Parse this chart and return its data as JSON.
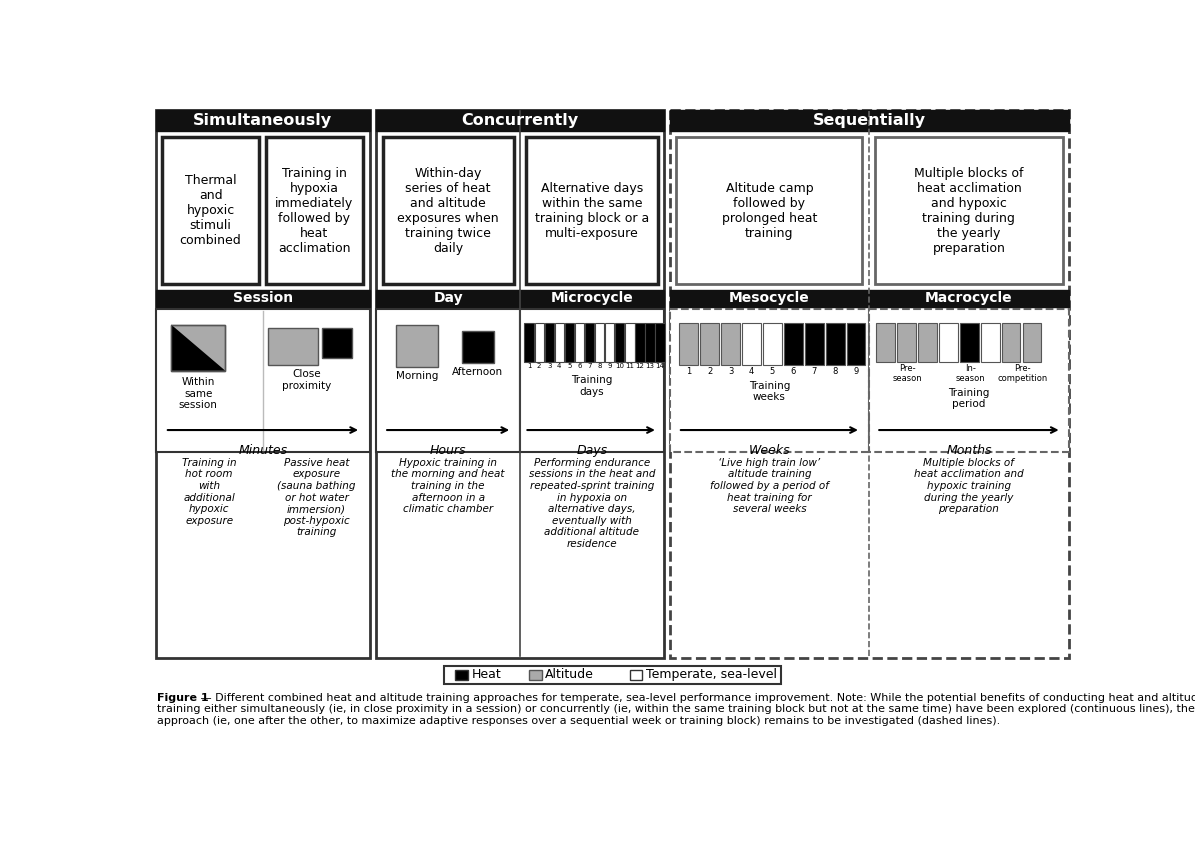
{
  "title_simultaneously": "Simultaneously",
  "title_concurrently": "Concurrently",
  "title_sequentially": "Sequentially",
  "header_bg": "#111111",
  "header_text_color": "#ffffff",
  "heat_color": "#000000",
  "altitude_color": "#aaaaaa",
  "temperate_color": "#ffffff",
  "figure_caption_bold": "Figure 1",
  "figure_caption_rest": " — Different combined heat and altitude training approaches for temperate, sea-level performance improvement. Note: While the potential benefits of conducting heat and altitude training either simultaneously (ie, in close proximity in a session) or concurrently (ie, within the same training block but not at the same time) have been explored (continuous lines), the sequential approach (ie, one after the other, to maximize adaptive responses over a sequential week or training block) remains to be investigated (dashed lines)."
}
